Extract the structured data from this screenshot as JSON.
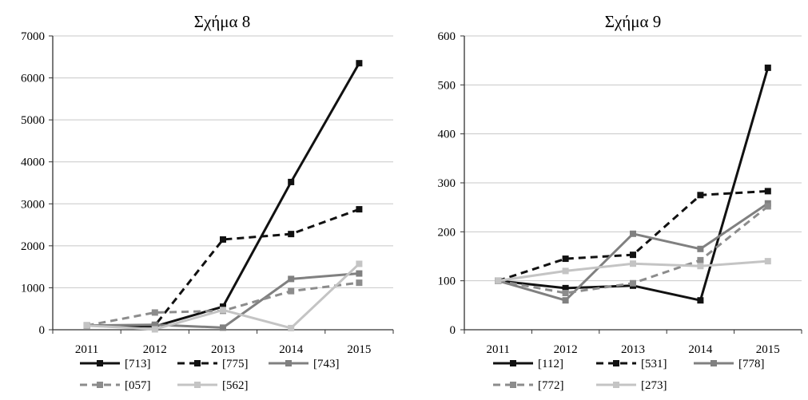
{
  "chart_data": [
    {
      "type": "line",
      "title": "Σχήμα 8",
      "x": [
        "2011",
        "2012",
        "2013",
        "2014",
        "2015"
      ],
      "ylim": [
        0,
        7000
      ],
      "yticks": [
        "0",
        "1000",
        "2000",
        "3000",
        "4000",
        "5000",
        "6000",
        "7000"
      ],
      "grid": true,
      "legend_position": "bottom",
      "series": [
        {
          "name": "[713]",
          "values": [
            100,
            80,
            550,
            3520,
            6350
          ],
          "color": "#111111",
          "dash": "solid"
        },
        {
          "name": "[775]",
          "values": [
            100,
            100,
            2150,
            2280,
            2870
          ],
          "color": "#111111",
          "dash": "dashed"
        },
        {
          "name": "[743]",
          "values": [
            100,
            120,
            50,
            1210,
            1340
          ],
          "color": "#808080",
          "dash": "solid"
        },
        {
          "name": "[057]",
          "values": [
            100,
            410,
            450,
            920,
            1120
          ],
          "color": "#8c8c8c",
          "dash": "dashed"
        },
        {
          "name": "[562]",
          "values": [
            100,
            10,
            470,
            40,
            1570
          ],
          "color": "#c4c4c4",
          "dash": "solid"
        }
      ]
    },
    {
      "type": "line",
      "title": "Σχήμα 9",
      "x": [
        "2011",
        "2012",
        "2013",
        "2014",
        "2015"
      ],
      "ylim": [
        0,
        600
      ],
      "yticks": [
        "0",
        "100",
        "200",
        "300",
        "400",
        "500",
        "600"
      ],
      "grid": true,
      "legend_position": "bottom",
      "series": [
        {
          "name": "[112]",
          "values": [
            100,
            85,
            90,
            60,
            535
          ],
          "color": "#111111",
          "dash": "solid"
        },
        {
          "name": "[531]",
          "values": [
            100,
            145,
            153,
            275,
            283
          ],
          "color": "#111111",
          "dash": "dashed"
        },
        {
          "name": "[778]",
          "values": [
            100,
            60,
            196,
            165,
            258
          ],
          "color": "#808080",
          "dash": "solid"
        },
        {
          "name": "[772]",
          "values": [
            100,
            75,
            95,
            142,
            252
          ],
          "color": "#8c8c8c",
          "dash": "dashed"
        },
        {
          "name": "[273]",
          "values": [
            100,
            120,
            135,
            130,
            140
          ],
          "color": "#c4c4c4",
          "dash": "solid"
        }
      ]
    }
  ]
}
